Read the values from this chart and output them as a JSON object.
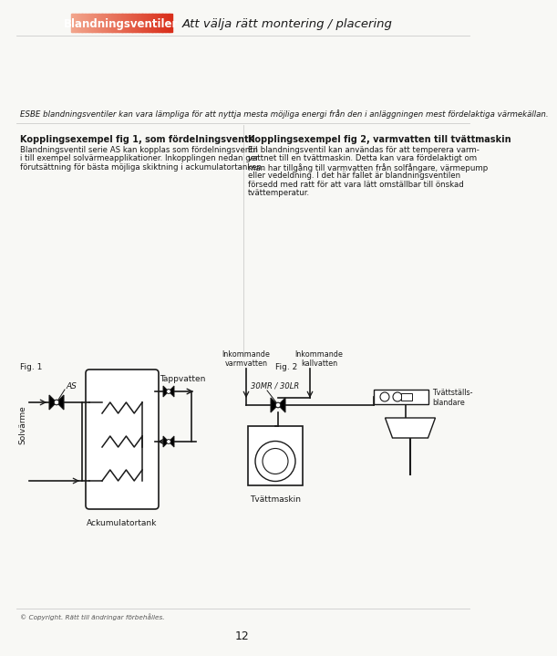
{
  "title_box_text": "Blandningsventiler",
  "title_subtitle": "Att välja rätt montering / placering",
  "intro_text": "ESBE blandningsventiler kan vara lämpliga för att nyttja mesta möjliga energi från den i anläggningen mest fördelaktiga värmekällan.",
  "section1_title": "Kopplingsexempel fig 1, som fördelningsventil",
  "section1_body": "Blandningsventil serie AS kan kopplas som fördelningsventil\ni till exempel solvärmeapplikationer. Inkopplingen nedan ger\nförutsättning för bästa möjliga skiktning i ackumulatortanken.",
  "section2_title": "Kopplingsexempel fig 2, varmvatten till tvättmaskin",
  "section2_body": "En blandningsventil kan användas för att temperera varm-\nvattnet till en tvättmaskin. Detta kan vara fördelaktigt om\nman har tillgång till varmvatten från solfångare, värmepump\neller vedeldning. I det här fallet är blandningsventilen\nförsedd med ratt för att vara lätt omställbar till önskad\ntvättemperatur.",
  "fig1_label": "Fig. 1",
  "fig2_label": "Fig. 2",
  "fig1_as_label": "AS",
  "fig1_solvärme_label": "Solvärme",
  "fig1_tappvatten_label": "Tappvatten",
  "fig1_tank_label": "Ackumulatortank",
  "fig2_valve_label": "30MR / 30LR",
  "fig2_hot_label": "Inkommande\nvarmvatten",
  "fig2_cold_label": "Inkommande\nkallvatten",
  "fig2_mixer_label": "Tvättställs-\nblandare",
  "fig2_machine_label": "Tvättmaskin",
  "copyright_text": "© Copyright. Rätt till ändringar förbehålles.",
  "page_number": "12",
  "bg_color": "#f8f8f5",
  "line_color": "#1a1a1a",
  "text_color": "#1a1a1a"
}
